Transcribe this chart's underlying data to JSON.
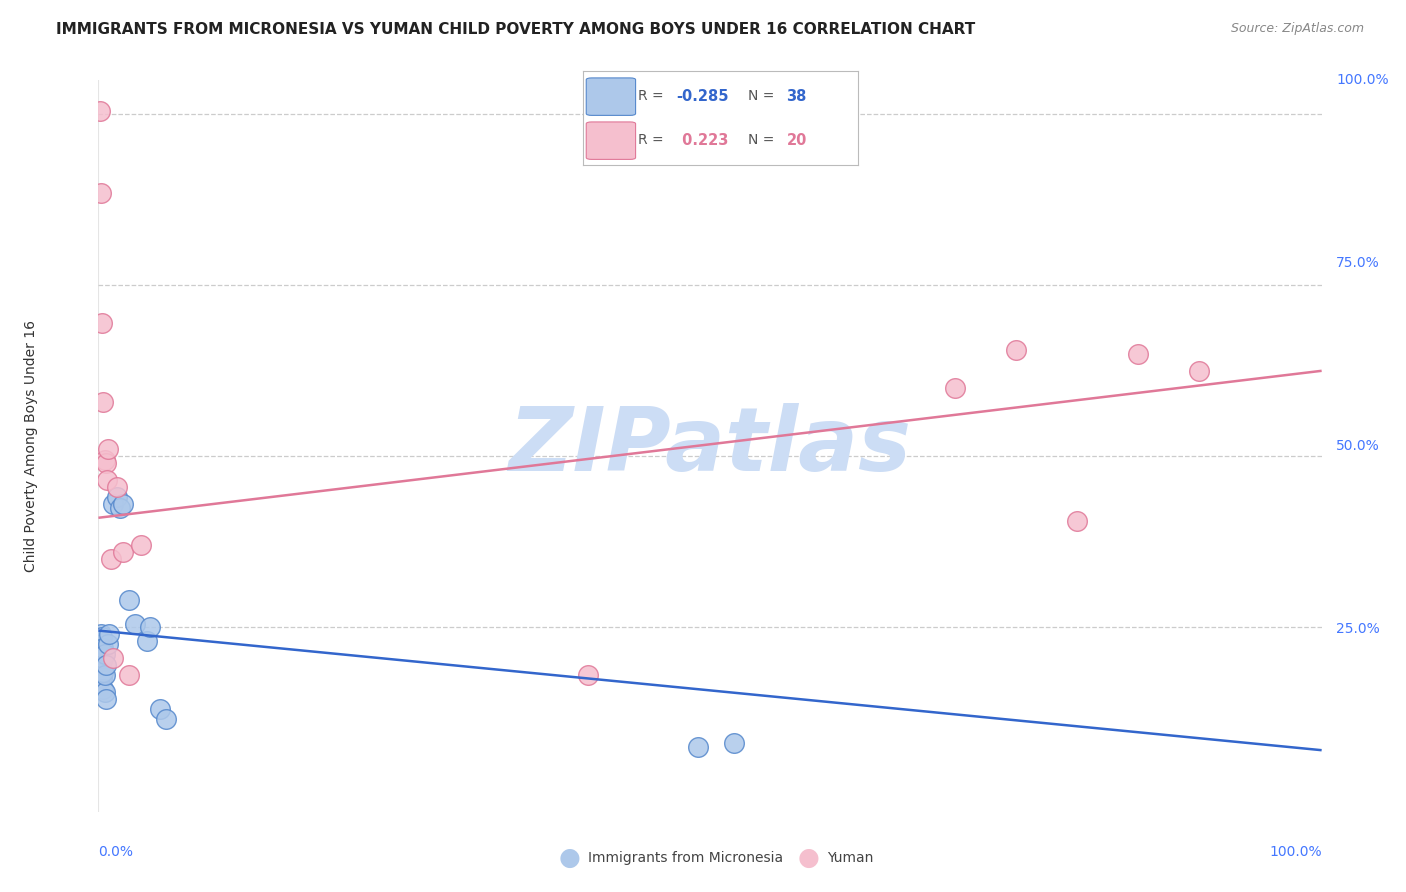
{
  "title": "IMMIGRANTS FROM MICRONESIA VS YUMAN CHILD POVERTY AMONG BOYS UNDER 16 CORRELATION CHART",
  "source": "Source: ZipAtlas.com",
  "ylabel": "Child Poverty Among Boys Under 16",
  "ytick_values": [
    0.0,
    0.25,
    0.5,
    0.75,
    1.0
  ],
  "ytick_labels": [
    "",
    "25.0%",
    "50.0%",
    "75.0%",
    "100.0%"
  ],
  "xtick_left": "0.0%",
  "xtick_right": "100.0%",
  "xlim": [
    0.0,
    1.0
  ],
  "ylim": [
    -0.02,
    1.05
  ],
  "blue_R": -0.285,
  "blue_N": 38,
  "pink_R": 0.223,
  "pink_N": 20,
  "blue_scatter_x": [
    0.001,
    0.001,
    0.001,
    0.001,
    0.002,
    0.002,
    0.002,
    0.002,
    0.002,
    0.003,
    0.003,
    0.003,
    0.003,
    0.003,
    0.003,
    0.004,
    0.004,
    0.004,
    0.004,
    0.005,
    0.005,
    0.005,
    0.006,
    0.006,
    0.008,
    0.009,
    0.012,
    0.015,
    0.018,
    0.02,
    0.025,
    0.03,
    0.04,
    0.042,
    0.05,
    0.055,
    0.49,
    0.52
  ],
  "blue_scatter_y": [
    0.205,
    0.215,
    0.22,
    0.235,
    0.195,
    0.21,
    0.22,
    0.23,
    0.24,
    0.175,
    0.185,
    0.2,
    0.215,
    0.225,
    0.235,
    0.16,
    0.185,
    0.205,
    0.22,
    0.155,
    0.18,
    0.21,
    0.145,
    0.195,
    0.225,
    0.24,
    0.43,
    0.44,
    0.425,
    0.43,
    0.29,
    0.255,
    0.23,
    0.25,
    0.13,
    0.115,
    0.075,
    0.08
  ],
  "pink_scatter_x": [
    0.001,
    0.002,
    0.003,
    0.004,
    0.005,
    0.006,
    0.007,
    0.008,
    0.01,
    0.012,
    0.015,
    0.02,
    0.025,
    0.035,
    0.4,
    0.7,
    0.75,
    0.8,
    0.85,
    0.9
  ],
  "pink_scatter_y": [
    1.005,
    0.885,
    0.695,
    0.58,
    0.495,
    0.49,
    0.465,
    0.51,
    0.35,
    0.205,
    0.455,
    0.36,
    0.18,
    0.37,
    0.18,
    0.6,
    0.655,
    0.405,
    0.65,
    0.625
  ],
  "blue_line_x": [
    0.0,
    1.0
  ],
  "blue_line_y": [
    0.245,
    0.07
  ],
  "pink_line_x": [
    0.0,
    1.0
  ],
  "pink_line_y": [
    0.41,
    0.625
  ],
  "watermark": "ZIPatlas",
  "blue_color": "#adc8ea",
  "blue_edge": "#5588cc",
  "pink_color": "#f5bfce",
  "pink_edge": "#e07898",
  "blue_line_color": "#3366cc",
  "pink_line_color": "#e07898",
  "grid_color": "#cccccc",
  "title_color": "#222222",
  "axis_tick_color": "#4477ff",
  "background_color": "#ffffff",
  "watermark_color": "#ccddf5",
  "legend_blue_color": "#adc8ea",
  "legend_blue_edge": "#5588cc",
  "legend_pink_color": "#f5bfce",
  "legend_pink_edge": "#e07898"
}
